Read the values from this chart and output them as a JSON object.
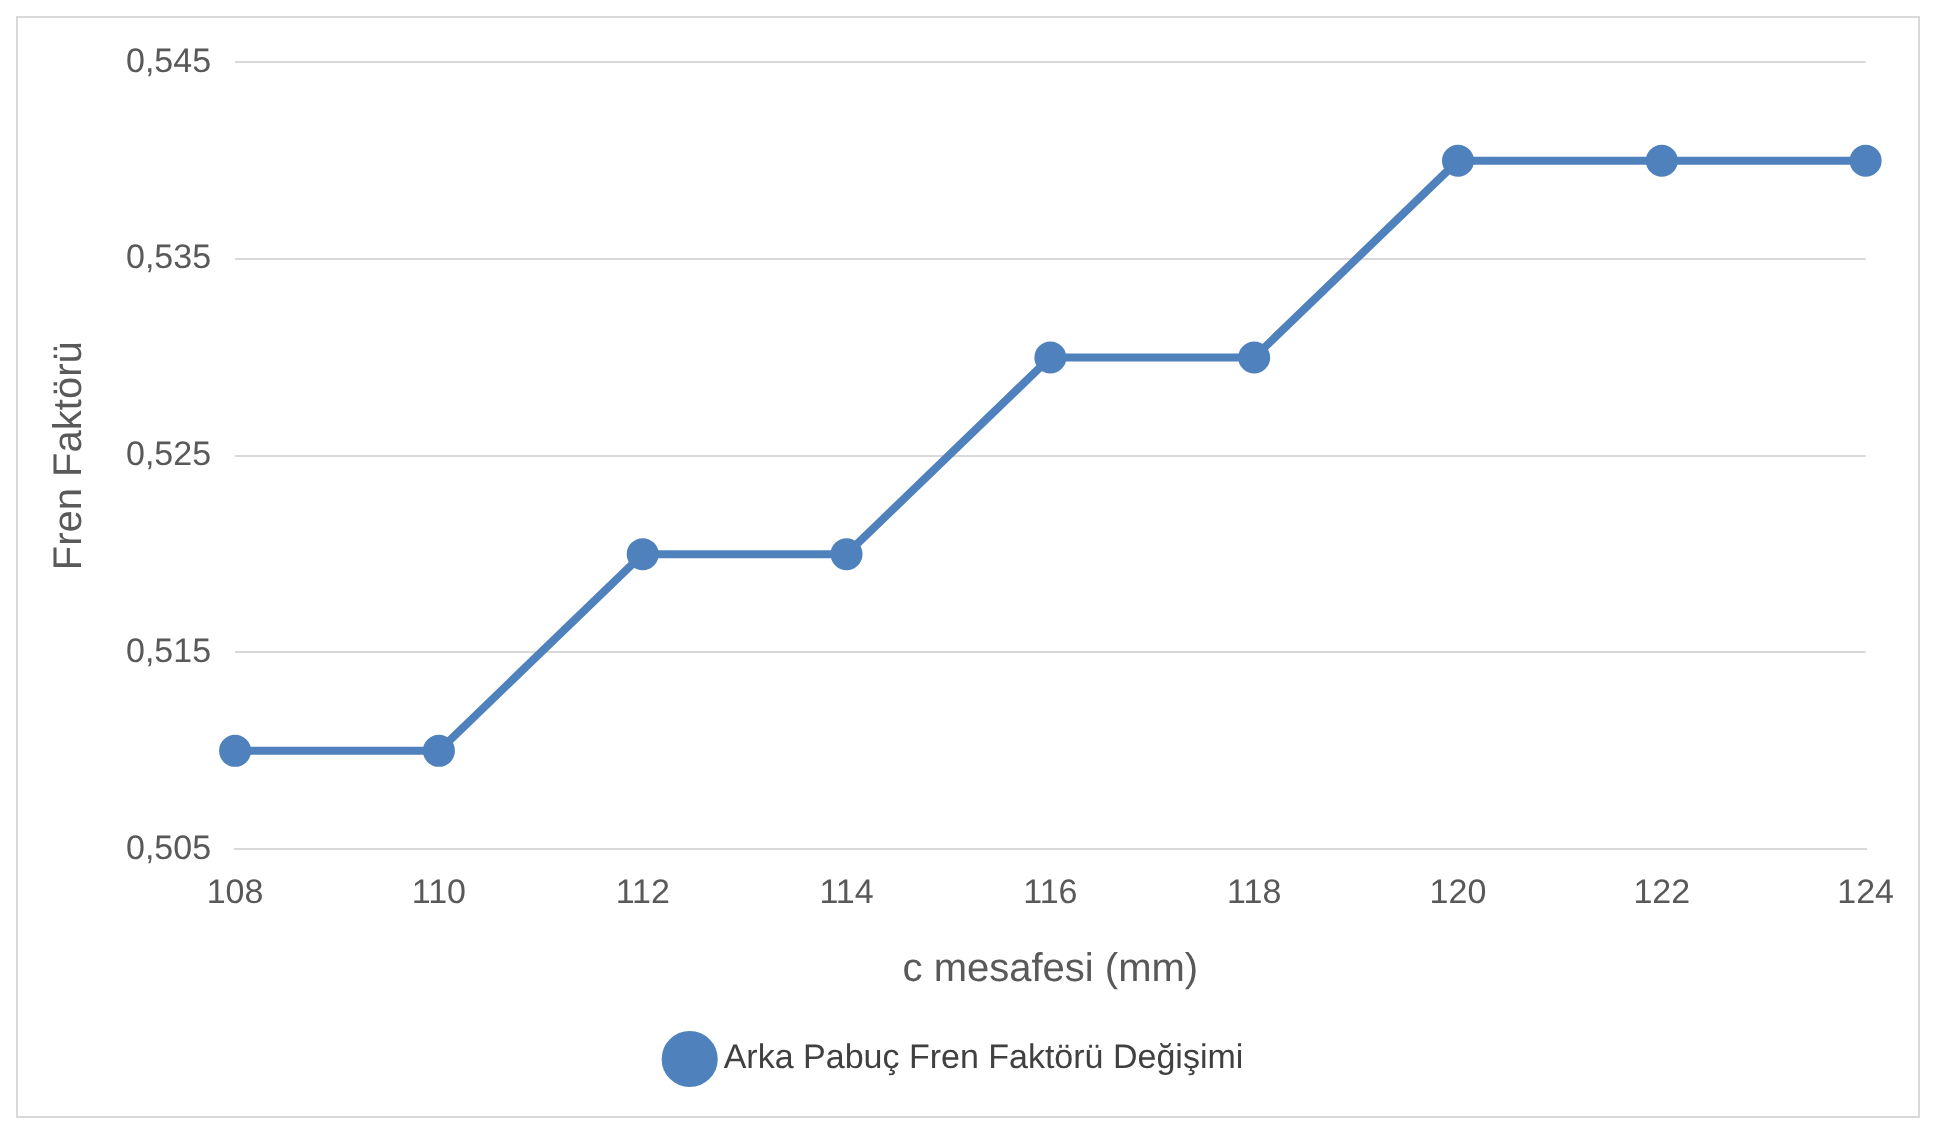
{
  "chart_data": {
    "type": "line",
    "xlabel": "c mesafesi (mm)",
    "ylabel": "Fren Faktörü",
    "categories": [
      "108",
      "110",
      "112",
      "114",
      "116",
      "118",
      "120",
      "122",
      "124"
    ],
    "series": [
      {
        "name": "Arka Pabuç Fren Faktörü Değişimi",
        "color": "#4f81bd",
        "values": [
          0.51,
          0.51,
          0.52,
          0.52,
          0.53,
          0.53,
          0.54,
          0.54,
          0.54
        ]
      }
    ],
    "ylim": [
      0.505,
      0.545
    ],
    "yticks": [
      {
        "value": 0.505,
        "label": "0,505"
      },
      {
        "value": 0.515,
        "label": "0,515"
      },
      {
        "value": 0.525,
        "label": "0,525"
      },
      {
        "value": 0.535,
        "label": "0,535"
      },
      {
        "value": 0.545,
        "label": "0,545"
      }
    ],
    "grid": "y",
    "legend": "bottom",
    "marker": "circle",
    "line_style": "solid"
  }
}
